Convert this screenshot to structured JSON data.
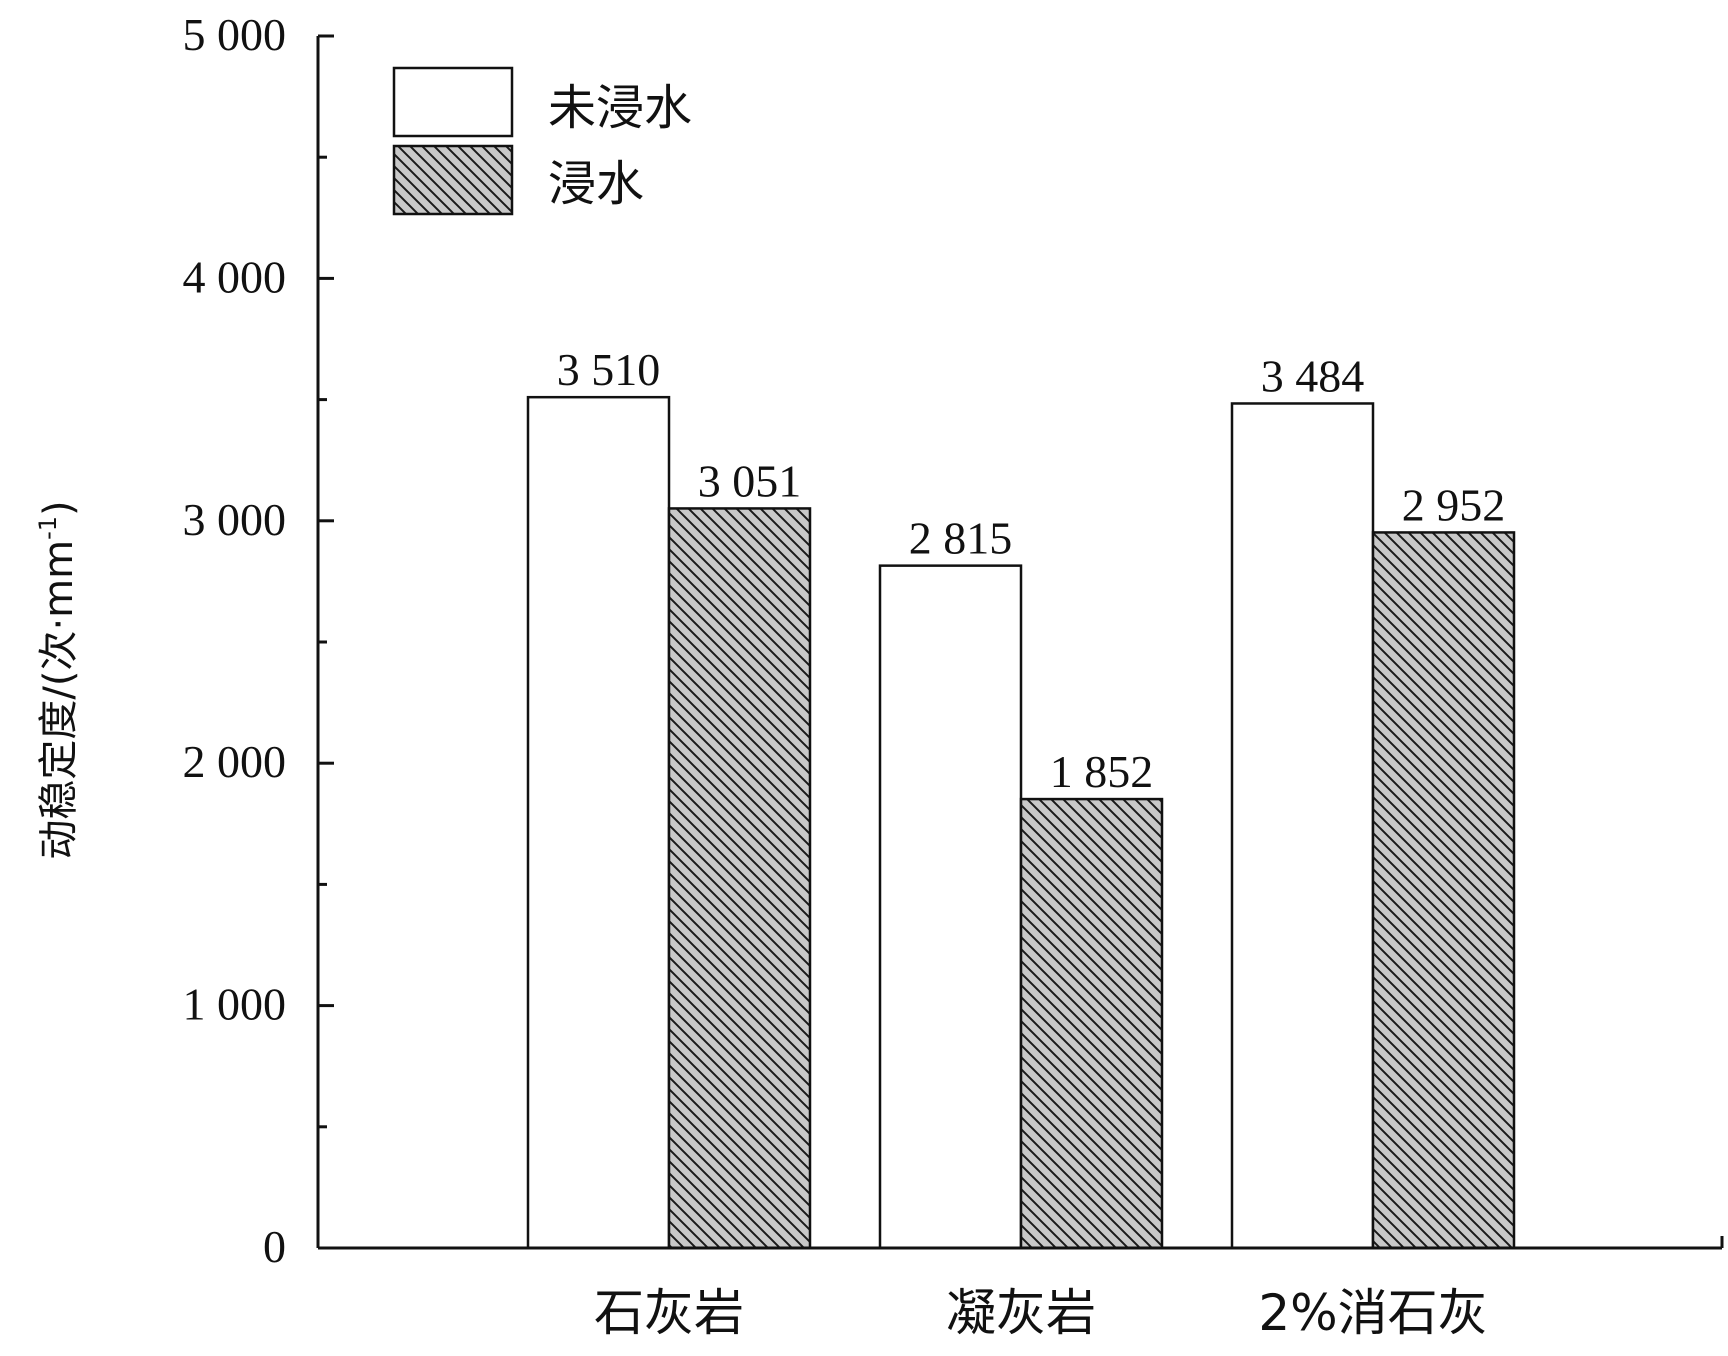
{
  "chart_data": {
    "type": "bar",
    "categories": [
      "石灰岩",
      "凝灰岩",
      "2%消石灰"
    ],
    "series": [
      {
        "name": "未浸水",
        "values": [
          3510,
          2815,
          3484
        ],
        "labels": [
          "3 510",
          "2 815",
          "3 484"
        ],
        "fill": "#ffffff",
        "pattern": "none"
      },
      {
        "name": "浸水",
        "values": [
          3051,
          1852,
          2952
        ],
        "labels": [
          "3 051",
          "1 852",
          "2 952"
        ],
        "fill": "#c8c8c8",
        "pattern": "diagonal-hatch"
      }
    ],
    "ylabel": "动稳定度/(次·mm",
    "ylabel_sup": "-1",
    "ylabel_close": ")",
    "ylim": [
      0,
      5000
    ],
    "yticks": [
      0,
      1000,
      2000,
      3000,
      4000,
      5000
    ],
    "ytick_labels": [
      "0",
      "1 000",
      "2 000",
      "3 000",
      "4 000",
      "5 000"
    ],
    "minor_ticks": true,
    "grid": false,
    "legend_position": "top-left"
  }
}
